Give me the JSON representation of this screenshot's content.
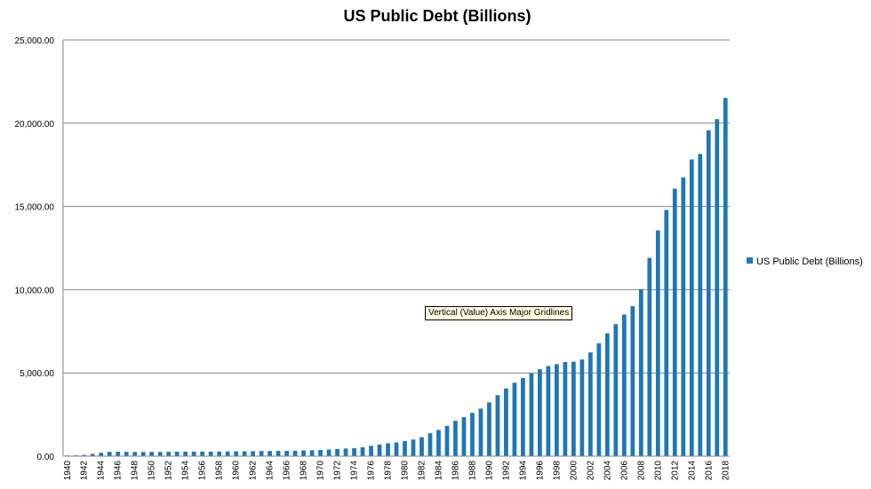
{
  "tooltip": "Vertical (Value) Axis Major Gridlines",
  "colors": {
    "bar": "#1f77b4",
    "gridline": "#868686",
    "axis": "#868686",
    "background": "#ffffff"
  },
  "chart_data": {
    "type": "bar",
    "title": "US Public Debt (Billions)",
    "xlabel": "",
    "ylabel": "",
    "ylim": [
      0,
      25000
    ],
    "yticks": [
      0,
      5000,
      10000,
      15000,
      20000,
      25000
    ],
    "ytick_labels": [
      "0.00",
      "5,000.00",
      "10,000.00",
      "15,000.00",
      "20,000.00",
      "25,000.00"
    ],
    "grid": true,
    "legend_position": "right",
    "categories": [
      "1940",
      "1941",
      "1942",
      "1943",
      "1944",
      "1945",
      "1946",
      "1947",
      "1948",
      "1949",
      "1950",
      "1951",
      "1952",
      "1953",
      "1954",
      "1955",
      "1956",
      "1957",
      "1958",
      "1959",
      "1960",
      "1961",
      "1962",
      "1963",
      "1964",
      "1965",
      "1966",
      "1967",
      "1968",
      "1969",
      "1970",
      "1971",
      "1972",
      "1973",
      "1974",
      "1975",
      "1976",
      "1977",
      "1978",
      "1979",
      "1980",
      "1981",
      "1982",
      "1983",
      "1984",
      "1985",
      "1986",
      "1987",
      "1988",
      "1989",
      "1990",
      "1991",
      "1992",
      "1993",
      "1994",
      "1995",
      "1996",
      "1997",
      "1998",
      "1999",
      "2000",
      "2001",
      "2002",
      "2003",
      "2004",
      "2005",
      "2006",
      "2007",
      "2008",
      "2009",
      "2010",
      "2011",
      "2012",
      "2013",
      "2014",
      "2015",
      "2016",
      "2017",
      "2018"
    ],
    "x_tick_labels": [
      "1940",
      "1942",
      "1944",
      "1946",
      "1948",
      "1950",
      "1952",
      "1954",
      "1956",
      "1958",
      "1960",
      "1962",
      "1964",
      "1966",
      "1968",
      "1970",
      "1972",
      "1974",
      "1976",
      "1978",
      "1980",
      "1982",
      "1984",
      "1986",
      "1988",
      "1990",
      "1992",
      "1994",
      "1996",
      "1998",
      "2000",
      "2002",
      "2004",
      "2006",
      "2008",
      "2010",
      "2012",
      "2014",
      "2016",
      "2018"
    ],
    "series": [
      {
        "name": "US Public Debt (Billions)",
        "values": [
          43,
          49,
          72,
          137,
          201,
          259,
          269,
          258,
          252,
          253,
          257,
          255,
          259,
          266,
          271,
          274,
          273,
          271,
          276,
          285,
          286,
          289,
          298,
          306,
          312,
          317,
          320,
          326,
          348,
          354,
          371,
          398,
          427,
          458,
          475,
          533,
          620,
          699,
          772,
          827,
          908,
          998,
          1142,
          1377,
          1572,
          1823,
          2125,
          2340,
          2602,
          2857,
          3233,
          3665,
          4065,
          4411,
          4693,
          4974,
          5225,
          5413,
          5526,
          5656,
          5674,
          5807,
          6228,
          6783,
          7379,
          7933,
          8507,
          9008,
          10025,
          11910,
          13562,
          14790,
          16066,
          16738,
          17824,
          18151,
          19573,
          20245,
          21516
        ]
      }
    ]
  }
}
